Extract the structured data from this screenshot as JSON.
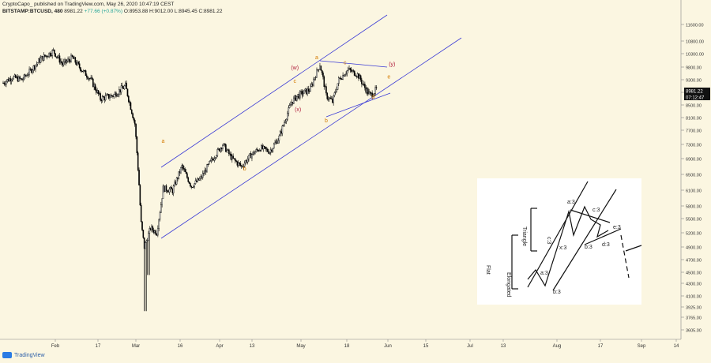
{
  "header": {
    "published": "CryptoCapo_ published on TradingView.com, May 26, 2020 10:47:19 CEST",
    "symbol": "BITSTAMP:BTCUSD, 480",
    "last": "8981.22",
    "change": "+77.66 (+0.87%)",
    "ohlc": "O:8953.88 H:9012.00 L:8945.45 C:8981.22"
  },
  "footer": {
    "brand": "TradingView"
  },
  "price_tags": {
    "last": "8981.22",
    "countdown": "07:12:47"
  },
  "colors": {
    "background": "#fbf6e1",
    "candles": "#000000",
    "channel": "#3b3bd6",
    "wave_orange": "#d47a00",
    "wave_red": "#b01c3c"
  },
  "chart_data": {
    "type": "candlestick",
    "symbol": "BITSTAMP:BTCUSD",
    "interval": "480",
    "y_ticks": [
      11600,
      10800,
      10300,
      9800,
      9300,
      8900,
      8500,
      8100,
      7700,
      7300,
      6900,
      6500,
      6100,
      5800,
      5500,
      5200,
      4900,
      4700,
      4500,
      4300,
      4100,
      3925,
      3765,
      3605
    ],
    "x_ticks": [
      "Feb",
      "17",
      "Mar",
      "16",
      "Apr",
      "13",
      "May",
      "18",
      "Jun",
      "15",
      "Jul",
      "13",
      "Aug",
      "17",
      "Sep",
      "14"
    ],
    "price_path": [
      [
        "2020-01-28",
        9200
      ],
      [
        "2020-01-31",
        9400
      ],
      [
        "2020-02-03",
        9300
      ],
      [
        "2020-02-06",
        9700
      ],
      [
        "2020-02-09",
        10100
      ],
      [
        "2020-02-13",
        10400
      ],
      [
        "2020-02-16",
        9900
      ],
      [
        "2020-02-19",
        10150
      ],
      [
        "2020-02-22",
        9700
      ],
      [
        "2020-02-25",
        9300
      ],
      [
        "2020-02-28",
        8700
      ],
      [
        "2020-03-03",
        8800
      ],
      [
        "2020-03-07",
        9100
      ],
      [
        "2020-03-10",
        7900
      ],
      [
        "2020-03-12",
        5400
      ],
      [
        "2020-03-13",
        4900
      ],
      [
        "2020-03-15",
        5300
      ],
      [
        "2020-03-17",
        5200
      ],
      [
        "2020-03-19",
        6150
      ],
      [
        "2020-03-22",
        6100
      ],
      [
        "2020-03-25",
        6700
      ],
      [
        "2020-03-28",
        6200
      ],
      [
        "2020-03-31",
        6400
      ],
      [
        "2020-04-03",
        6800
      ],
      [
        "2020-04-07",
        7300
      ],
      [
        "2020-04-10",
        6900
      ],
      [
        "2020-04-13",
        6700
      ],
      [
        "2020-04-16",
        7000
      ],
      [
        "2020-04-19",
        7200
      ],
      [
        "2020-04-22",
        7100
      ],
      [
        "2020-04-25",
        7500
      ],
      [
        "2020-04-29",
        8600
      ],
      [
        "2020-05-01",
        8800
      ],
      [
        "2020-05-03",
        8900
      ],
      [
        "2020-05-05",
        9000
      ],
      [
        "2020-05-08",
        9900
      ],
      [
        "2020-05-10",
        8800
      ],
      [
        "2020-05-12",
        8600
      ],
      [
        "2020-05-14",
        9300
      ],
      [
        "2020-05-17",
        9700
      ],
      [
        "2020-05-20",
        9500
      ],
      [
        "2020-05-22",
        9100
      ],
      [
        "2020-05-24",
        8800
      ],
      [
        "2020-05-26",
        8981
      ]
    ],
    "wave_labels": [
      {
        "text": "a",
        "date": "2020-03-19",
        "price": 7350,
        "color": "orange"
      },
      {
        "text": "b",
        "date": "2020-04-14",
        "price": 6600,
        "color": "orange"
      },
      {
        "text": "c",
        "date": "2020-04-30",
        "price": 9200,
        "color": "orange"
      },
      {
        "text": "(w)",
        "date": "2020-04-30",
        "price": 9700,
        "color": "red"
      },
      {
        "text": "(x)",
        "date": "2020-05-01",
        "price": 8300,
        "color": "red"
      },
      {
        "text": "a",
        "date": "2020-05-07",
        "price": 10100,
        "color": "orange"
      },
      {
        "text": "b",
        "date": "2020-05-10",
        "price": 7950,
        "color": "orange"
      },
      {
        "text": "c",
        "date": "2020-05-16",
        "price": 9900,
        "color": "orange"
      },
      {
        "text": "(y)",
        "date": "2020-05-31",
        "price": 9850,
        "color": "red"
      },
      {
        "text": "e",
        "date": "2020-05-30",
        "price": 9350,
        "color": "orange"
      },
      {
        "text": "d",
        "date": "2020-05-25",
        "price": 8700,
        "color": "orange"
      }
    ]
  },
  "reference_diagram": {
    "labels": [
      "Triangle",
      "Flat",
      "Elongated",
      "a:3",
      "b:3",
      "c:3",
      "x:3",
      "a:3",
      "b:3",
      "c:3",
      "d:3",
      "e:3"
    ]
  }
}
